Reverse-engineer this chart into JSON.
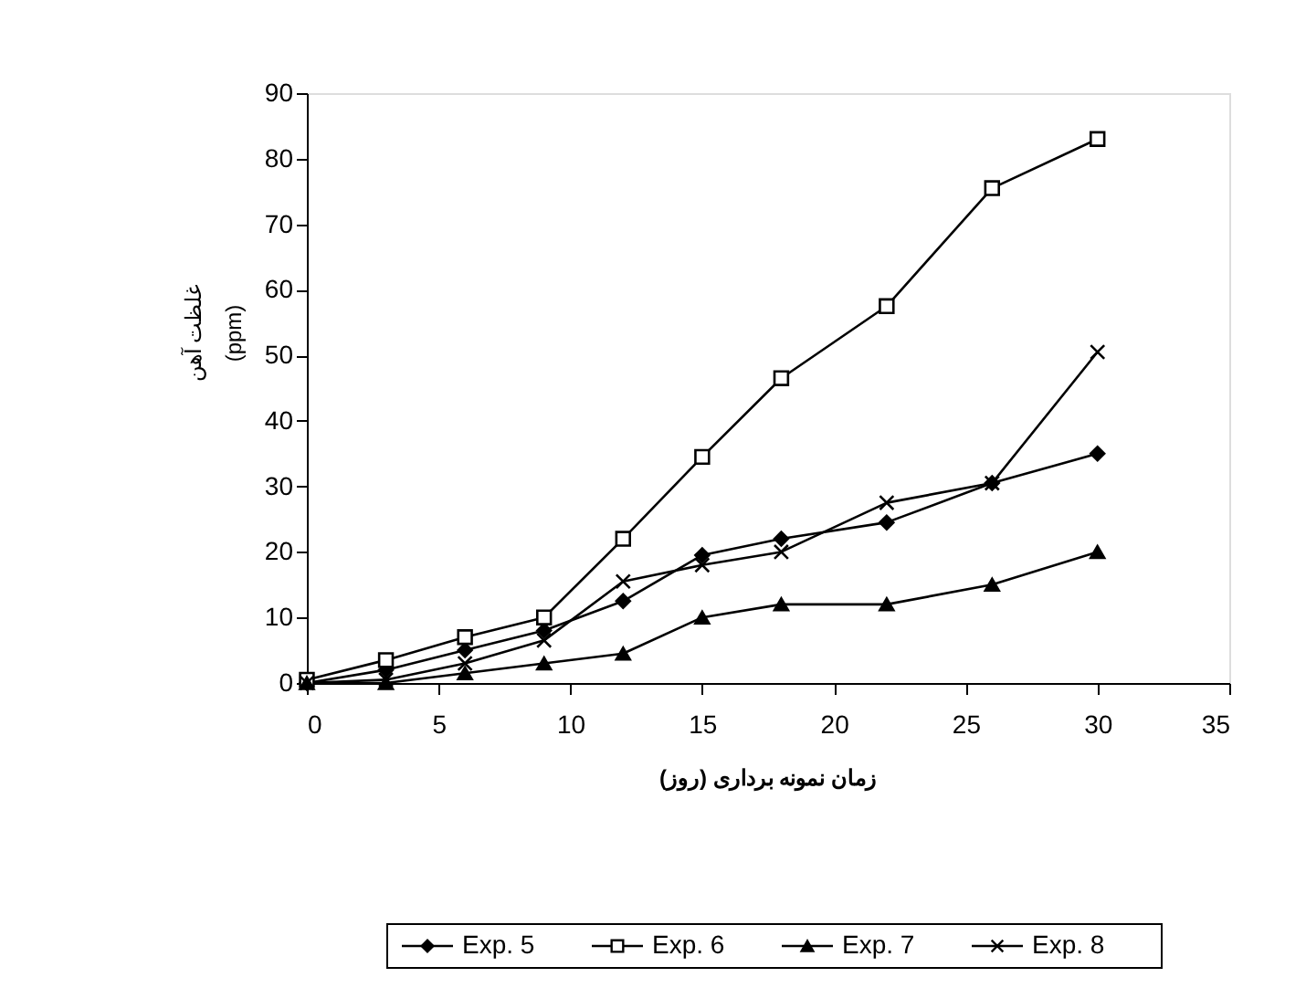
{
  "chart_data": {
    "type": "line",
    "x": [
      0,
      3,
      6,
      9,
      12,
      15,
      18,
      22,
      26,
      30
    ],
    "series": [
      {
        "name": "Exp. 5",
        "color": "#000000",
        "marker": "diamond",
        "values": [
          0,
          2,
          5,
          8,
          12.5,
          19.5,
          22,
          24.5,
          30.5,
          35
        ]
      },
      {
        "name": "Exp. 6",
        "color": "#000000",
        "marker": "square",
        "values": [
          0.5,
          3.5,
          7,
          10,
          22,
          34.5,
          46.5,
          57.5,
          75.5,
          83
        ]
      },
      {
        "name": "Exp. 7",
        "color": "#000000",
        "marker": "triangle",
        "values": [
          0,
          0,
          1.5,
          3,
          4.5,
          10,
          12,
          12,
          15,
          20
        ]
      },
      {
        "name": "Exp. 8",
        "color": "#000000",
        "marker": "cross",
        "values": [
          0,
          0.5,
          3,
          6.5,
          15.5,
          18,
          20,
          27.5,
          30.5,
          50.5
        ]
      }
    ],
    "xlabel": "زمان نمونه برداری (روز)",
    "ylabel": "غلظت آهن\n(ppm)",
    "xlim": [
      0,
      35
    ],
    "xticks": [
      0,
      5,
      10,
      15,
      20,
      25,
      30,
      35
    ],
    "ylim": [
      0,
      90
    ],
    "yticks": [
      0,
      10,
      20,
      30,
      40,
      50,
      60,
      70,
      80,
      90
    ],
    "grid": false,
    "legend": "bottom",
    "line_style": "solid"
  }
}
